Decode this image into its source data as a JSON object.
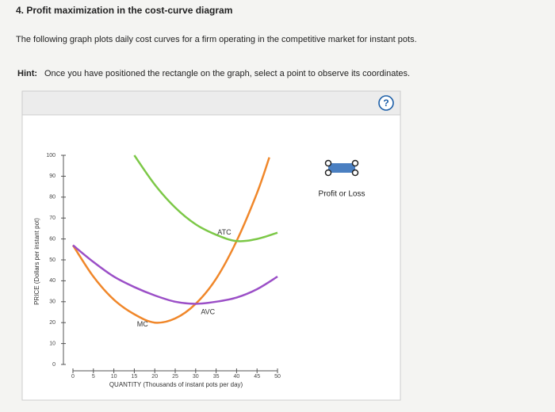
{
  "question": {
    "title": "4. Profit maximization in the cost-curve diagram",
    "intro": "The following graph plots daily cost curves for a firm operating in the competitive market for instant pots.",
    "hint_label": "Hint:",
    "hint_text": "Once you have positioned the rectangle on the graph, select a point to observe its coordinates.",
    "help": "?"
  },
  "chart_data": {
    "type": "line",
    "xlabel": "QUANTITY (Thousands of instant pots per day)",
    "ylabel": "PRICE (Dollars per instant pot)",
    "xlim": [
      0,
      50
    ],
    "xticks": [
      0,
      5,
      10,
      15,
      20,
      25,
      30,
      35,
      40,
      45,
      50
    ],
    "ylim": [
      0,
      100
    ],
    "yticks": [
      0,
      10,
      20,
      30,
      40,
      50,
      60,
      70,
      80,
      90,
      100
    ],
    "grid": false,
    "series": [
      {
        "name": "MC",
        "color": "#f0872a",
        "x": [
          0,
          5,
          10,
          15,
          20,
          25,
          30,
          35,
          40,
          45,
          48
        ],
        "values": [
          57,
          42,
          31,
          24,
          20,
          22,
          29,
          41,
          59,
          82,
          99
        ]
      },
      {
        "name": "AVC",
        "color": "#9b4fc7",
        "x": [
          0,
          5,
          10,
          15,
          20,
          25,
          30,
          35,
          40,
          45,
          50
        ],
        "values": [
          57,
          49,
          42,
          37,
          33,
          30,
          29,
          30,
          32,
          36,
          42
        ]
      },
      {
        "name": "ATC",
        "color": "#7cc847",
        "x": [
          15,
          20,
          25,
          30,
          35,
          40,
          45,
          50
        ],
        "values": [
          100,
          86,
          75,
          67,
          62,
          59,
          60,
          63
        ]
      }
    ]
  },
  "tool": {
    "label": "Profit or Loss"
  }
}
